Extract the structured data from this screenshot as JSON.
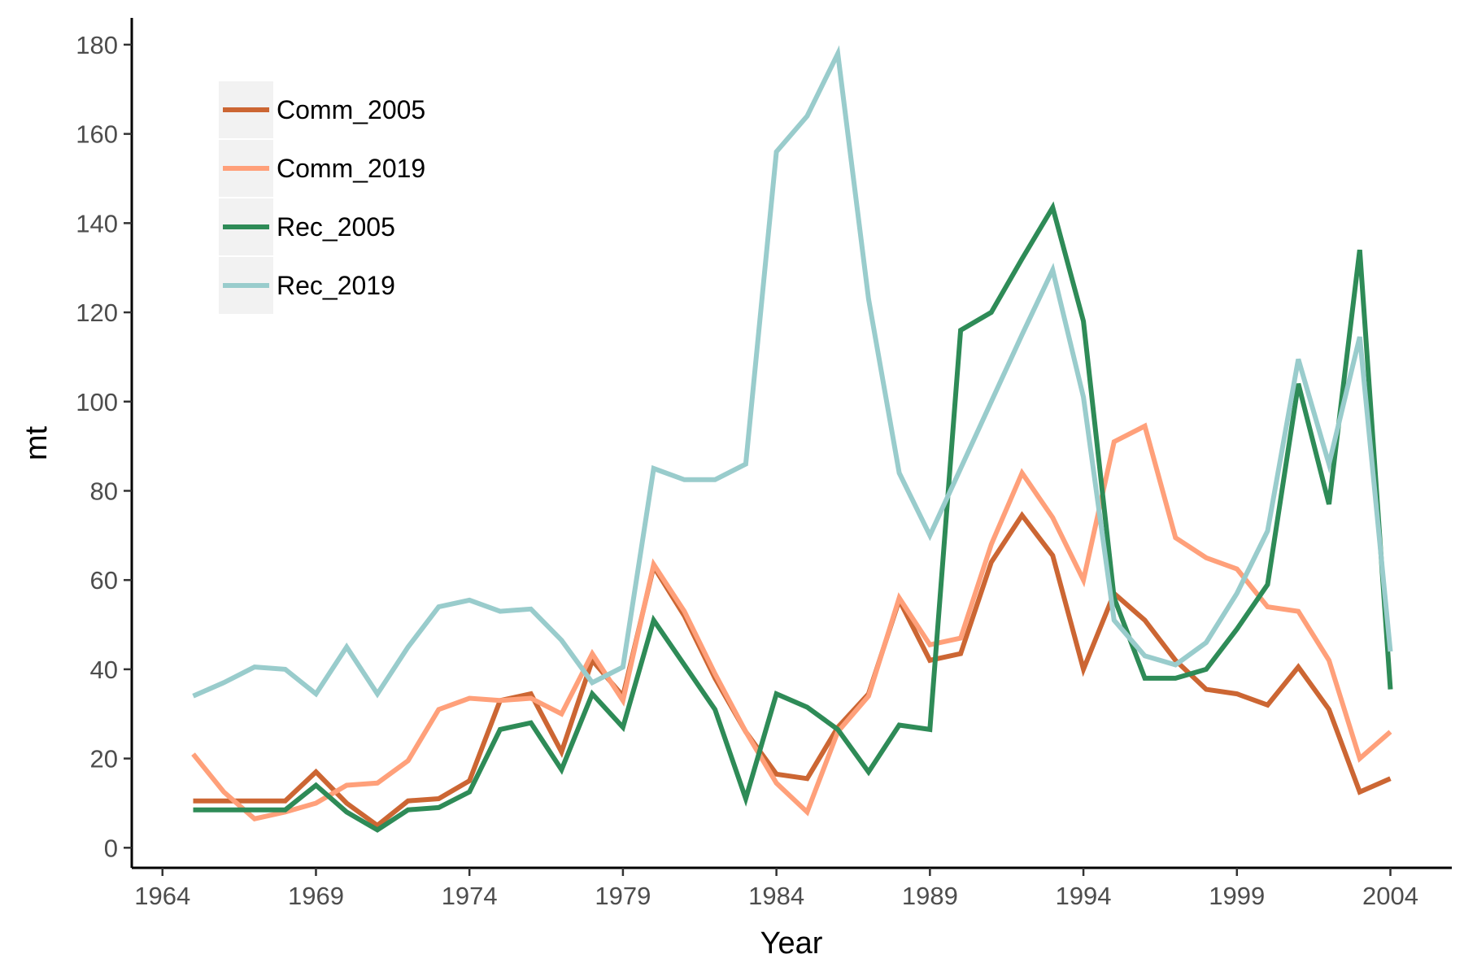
{
  "chart_data": {
    "type": "line",
    "xlabel": "Year",
    "ylabel": "mt",
    "xlim": [
      1963.0,
      2006.0
    ],
    "ylim": [
      -4.5,
      186
    ],
    "xticks": [
      1964,
      1969,
      1974,
      1979,
      1984,
      1989,
      1994,
      1999,
      2004
    ],
    "yticks": [
      0,
      20,
      40,
      60,
      80,
      100,
      120,
      140,
      160,
      180
    ],
    "grid": false,
    "legend_position": "top-left",
    "x": [
      1965,
      1966,
      1967,
      1968,
      1969,
      1970,
      1971,
      1972,
      1973,
      1974,
      1975,
      1976,
      1977,
      1978,
      1979,
      1980,
      1981,
      1982,
      1983,
      1984,
      1985,
      1986,
      1987,
      1988,
      1989,
      1990,
      1991,
      1992,
      1993,
      1994,
      1995,
      1996,
      1997,
      1998,
      1999,
      2000,
      2001,
      2002,
      2003,
      2004
    ],
    "series": [
      {
        "name": "Comm_2005",
        "color": "#CC6633",
        "values": [
          10.5,
          10.5,
          10.5,
          10.5,
          17,
          10,
          5,
          10.5,
          11,
          15,
          33,
          34.5,
          21.5,
          42,
          34,
          63,
          52,
          38,
          26,
          16.5,
          15.5,
          27,
          34.5,
          55.5,
          42,
          43.5,
          64,
          74.5,
          65.5,
          40,
          57,
          51,
          42,
          35.5,
          34.5,
          32,
          40.5,
          31,
          12.5,
          15.5
        ]
      },
      {
        "name": "Comm_2019",
        "color": "#FFA07A",
        "values": [
          21,
          12.5,
          6.5,
          8,
          10,
          14,
          14.5,
          19.5,
          31,
          33.5,
          33,
          33.5,
          30,
          43.5,
          33,
          63.5,
          53,
          39,
          26,
          14.5,
          8,
          26,
          34,
          56,
          45.5,
          47,
          68,
          84,
          74,
          60,
          91,
          94.5,
          69.5,
          65,
          62.5,
          54,
          53,
          42,
          20,
          26
        ]
      },
      {
        "name": "Rec_2005",
        "color": "#2E8B57",
        "values": [
          8.5,
          8.5,
          8.5,
          8.5,
          14,
          8,
          4,
          8.5,
          9,
          12.5,
          26.5,
          28,
          17.5,
          34.5,
          27,
          51,
          41,
          31,
          11,
          34.5,
          31.5,
          26.5,
          17,
          27.5,
          26.5,
          116,
          120,
          132,
          143.5,
          118,
          56,
          38,
          38,
          40,
          49,
          59,
          104,
          77,
          134,
          35.5
        ]
      },
      {
        "name": "Rec_2019",
        "color": "#99CCCC",
        "values": [
          34,
          37,
          40.5,
          40,
          34.5,
          45,
          34.5,
          45,
          54,
          55.5,
          53,
          53.5,
          46.5,
          37,
          40.5,
          85,
          82.5,
          82.5,
          86,
          156,
          164,
          178,
          123,
          84,
          70,
          85,
          100,
          115,
          129.5,
          101,
          51,
          43,
          41,
          46,
          57,
          71,
          109.5,
          86,
          114.5,
          44
        ]
      }
    ]
  }
}
